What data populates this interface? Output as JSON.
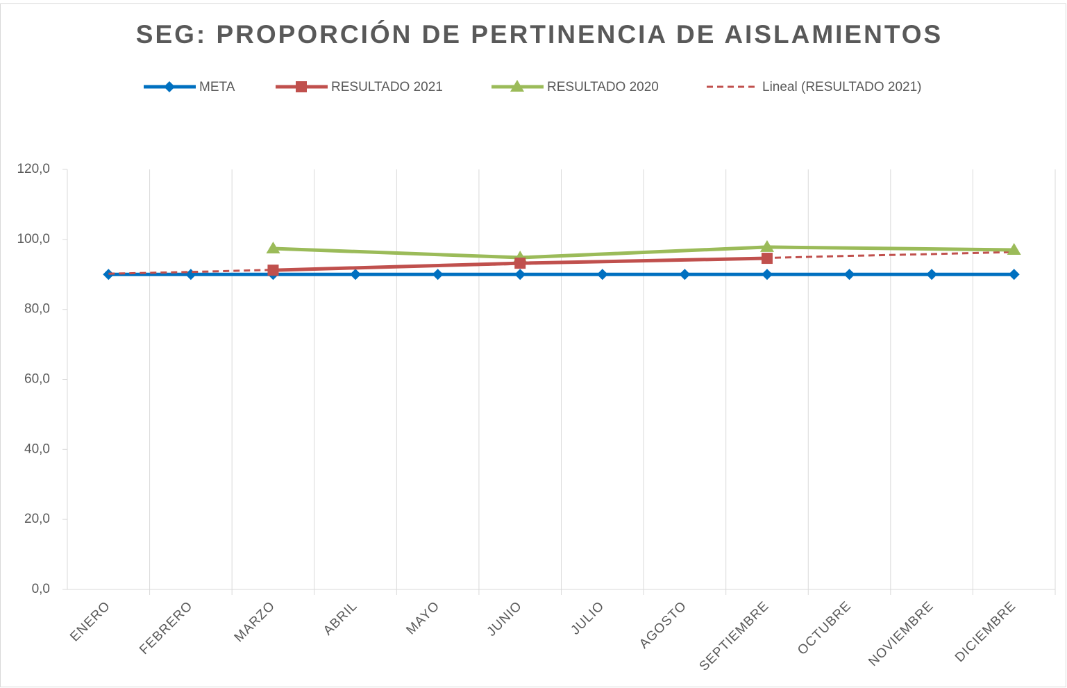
{
  "chart_data": {
    "type": "line",
    "title": "SEG: PROPORCIÓN DE PERTINENCIA DE AISLAMIENTOS",
    "categories": [
      "ENERO",
      "FEBRERO",
      "MARZO",
      "ABRIL",
      "MAYO",
      "JUNIO",
      "JULIO",
      "AGOSTO",
      "SEPTIEMBRE",
      "OCTUBRE",
      "NOVIEMBRE",
      "DICIEMBRE"
    ],
    "series": [
      {
        "name": "META",
        "color": "#0070c0",
        "marker": "diamond",
        "dashed": false,
        "values": [
          90,
          90,
          90,
          90,
          90,
          90,
          90,
          90,
          90,
          90,
          90,
          90
        ]
      },
      {
        "name": "RESULTADO 2021",
        "color": "#c0504d",
        "marker": "square",
        "dashed": false,
        "values": [
          null,
          null,
          91.2,
          null,
          null,
          93.2,
          null,
          null,
          94.6,
          null,
          null,
          null
        ]
      },
      {
        "name": "RESULTADO 2020",
        "color": "#9bbb59",
        "marker": "triangle",
        "dashed": false,
        "values": [
          null,
          null,
          97.4,
          null,
          null,
          94.8,
          null,
          null,
          97.8,
          null,
          null,
          97.0
        ]
      },
      {
        "name": "Lineal (RESULTADO 2021)",
        "color": "#c0504d",
        "marker": "none",
        "dashed": true,
        "values": [
          90.2,
          90.7,
          91.3,
          91.9,
          92.4,
          93.0,
          93.6,
          94.1,
          94.7,
          95.3,
          95.8,
          96.4
        ]
      }
    ],
    "connect_gaps": true,
    "ylim": [
      0,
      120
    ],
    "yticks": [
      {
        "value": 0,
        "label": "0,0"
      },
      {
        "value": 20,
        "label": "20,0"
      },
      {
        "value": 40,
        "label": "40,0"
      },
      {
        "value": 60,
        "label": "60,0"
      },
      {
        "value": 80,
        "label": "80,0"
      },
      {
        "value": 100,
        "label": "100,0"
      },
      {
        "value": 120,
        "label": "120,0"
      }
    ],
    "grid": "vertical",
    "legend": "top"
  }
}
